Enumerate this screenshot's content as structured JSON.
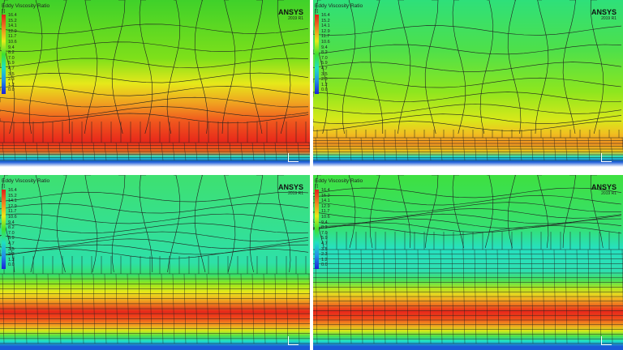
{
  "panels": [
    {
      "id": "top-left"
    },
    {
      "id": "top-right"
    },
    {
      "id": "bottom-left"
    },
    {
      "id": "bottom-right"
    }
  ],
  "legend": {
    "title": "Eddy Viscosity Ratio",
    "unit": "[ ]",
    "values": [
      "16.4",
      "15.2",
      "14.1",
      "12.9",
      "11.7",
      "10.6",
      "9.4",
      "8.2",
      "7.0",
      "5.9",
      "4.7",
      "3.5",
      "2.3",
      "1.2",
      "0.0"
    ]
  },
  "logo": {
    "brand": "ANSYS",
    "version": "2019 R1"
  },
  "colors": {
    "max": "#e0201a",
    "mid": "#e8e81a",
    "low": "#3ee030",
    "min": "#1a20d8"
  }
}
